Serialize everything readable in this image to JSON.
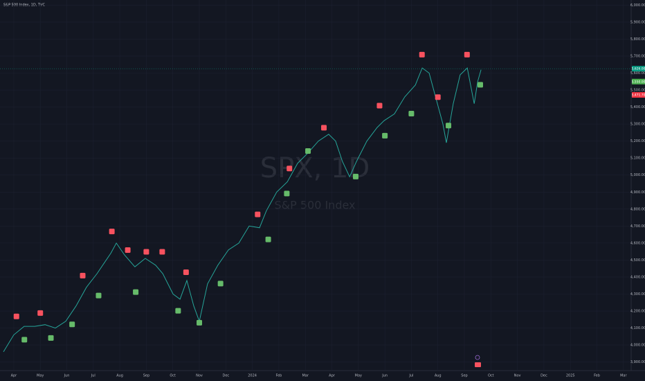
{
  "chart_data": {
    "type": "line",
    "title": "S&P 500 Index, 1D, TVC",
    "watermark": "SPX, 1D",
    "watermark_subtitle": "S&P 500 Index",
    "xlim": [
      0.48,
      24.24
    ],
    "xticks": [
      {
        "value": 1,
        "label": "Apr"
      },
      {
        "value": 2,
        "label": "May"
      },
      {
        "value": 3,
        "label": "Jun"
      },
      {
        "value": 4,
        "label": "Jul"
      },
      {
        "value": 5,
        "label": "Aug"
      },
      {
        "value": 6,
        "label": "Sep"
      },
      {
        "value": 7,
        "label": "Oct"
      },
      {
        "value": 8,
        "label": "Nov"
      },
      {
        "value": 9,
        "label": "Dec"
      },
      {
        "value": 10,
        "label": "2024"
      },
      {
        "value": 11,
        "label": "Feb"
      },
      {
        "value": 12,
        "label": "Mar"
      },
      {
        "value": 13,
        "label": "Apr"
      },
      {
        "value": 14,
        "label": "May"
      },
      {
        "value": 15,
        "label": "Jun"
      },
      {
        "value": 16,
        "label": "Jul"
      },
      {
        "value": 17,
        "label": "Aug"
      },
      {
        "value": 18,
        "label": "Sep"
      },
      {
        "value": 19,
        "label": "Oct"
      },
      {
        "value": 20,
        "label": "Nov"
      },
      {
        "value": 21,
        "label": "Dec"
      },
      {
        "value": 22,
        "label": "2025"
      },
      {
        "value": 23,
        "label": "Feb"
      },
      {
        "value": 24,
        "label": "Mar"
      }
    ],
    "ylim": [
      3870,
      6030
    ],
    "yticks": [
      {
        "value": 3900,
        "label": "3,900.00"
      },
      {
        "value": 4000,
        "label": "4,000.00"
      },
      {
        "value": 4100,
        "label": "4,100.00"
      },
      {
        "value": 4200,
        "label": "4,200.00"
      },
      {
        "value": 4300,
        "label": "4,300.00"
      },
      {
        "value": 4400,
        "label": "4,400.00"
      },
      {
        "value": 4500,
        "label": "4,500.00"
      },
      {
        "value": 4600,
        "label": "4,600.00"
      },
      {
        "value": 4700,
        "label": "4,700.00"
      },
      {
        "value": 4800,
        "label": "4,800.00"
      },
      {
        "value": 4900,
        "label": "4,900.00"
      },
      {
        "value": 5000,
        "label": "5,000.00"
      },
      {
        "value": 5100,
        "label": "5,100.00"
      },
      {
        "value": 5200,
        "label": "5,200.00"
      },
      {
        "value": 5300,
        "label": "5,300.00"
      },
      {
        "value": 5400,
        "label": "5,400.00"
      },
      {
        "value": 5500,
        "label": "5,500.00"
      },
      {
        "value": 5600,
        "label": "5,600.00"
      },
      {
        "value": 5700,
        "label": "5,700.00"
      },
      {
        "value": 5800,
        "label": "5,800.00"
      },
      {
        "value": 5900,
        "label": "5,900.00"
      },
      {
        "value": 6000,
        "label": "6,000.00"
      }
    ],
    "grid": true,
    "series": [
      {
        "color": "#26a69a",
        "x": [
          0.61,
          1.0,
          1.39,
          1.79,
          2.18,
          2.57,
          2.96,
          3.35,
          3.74,
          4.14,
          4.4,
          4.66,
          4.87,
          5.18,
          5.57,
          5.96,
          6.35,
          6.62,
          7.01,
          7.27,
          7.53,
          7.79,
          8.0,
          8.31,
          8.7,
          9.1,
          9.49,
          9.88,
          10.27,
          10.53,
          10.92,
          11.32,
          11.71,
          12.1,
          12.49,
          12.88,
          13.14,
          13.4,
          13.67,
          13.93,
          14.32,
          14.71,
          14.97,
          15.36,
          15.75,
          16.15,
          16.41,
          16.67,
          16.93,
          17.19,
          17.32,
          17.58,
          17.84,
          18.11,
          18.37,
          18.5,
          18.63
        ],
        "values": [
          3960,
          4060,
          4110,
          4110,
          4120,
          4100,
          4140,
          4230,
          4340,
          4420,
          4480,
          4540,
          4600,
          4530,
          4460,
          4510,
          4470,
          4420,
          4300,
          4270,
          4380,
          4230,
          4140,
          4360,
          4470,
          4560,
          4600,
          4700,
          4690,
          4790,
          4900,
          4960,
          5070,
          5130,
          5200,
          5240,
          5200,
          5080,
          4990,
          5080,
          5200,
          5280,
          5320,
          5360,
          5460,
          5530,
          5630,
          5600,
          5450,
          5300,
          5190,
          5420,
          5590,
          5630,
          5420,
          5550,
          5620
        ]
      }
    ],
    "sell_signals": {
      "color": "#f7525f",
      "x": [
        1.1,
        2.0,
        3.6,
        4.7,
        5.3,
        6.0,
        6.6,
        7.5,
        10.2,
        11.4,
        12.7,
        14.8,
        16.4,
        17.0,
        18.1
      ],
      "values": [
        4140,
        4160,
        4380,
        4640,
        4530,
        4520,
        4520,
        4400,
        4740,
        5010,
        5250,
        5380,
        5680,
        5430,
        5680
      ]
    },
    "buy_signals": {
      "color": "#66bb6a",
      "x": [
        1.4,
        2.4,
        3.2,
        4.2,
        5.6,
        7.2,
        8.0,
        8.8,
        10.6,
        11.3,
        12.1,
        13.9,
        15.0,
        16.0,
        17.4,
        18.6
      ],
      "values": [
        4060,
        4070,
        4150,
        4320,
        4340,
        4230,
        4160,
        4390,
        4650,
        4920,
        5170,
        5020,
        5260,
        5390,
        5320,
        5560
      ]
    },
    "price_tags": [
      {
        "value": 5626,
        "label": "5,626.00",
        "color": "#089981"
      },
      {
        "value": 5550,
        "label": "5,550.00",
        "color": "#4caf50"
      },
      {
        "value": 5471.7,
        "label": "5,471.70",
        "color": "#f23645"
      }
    ]
  }
}
